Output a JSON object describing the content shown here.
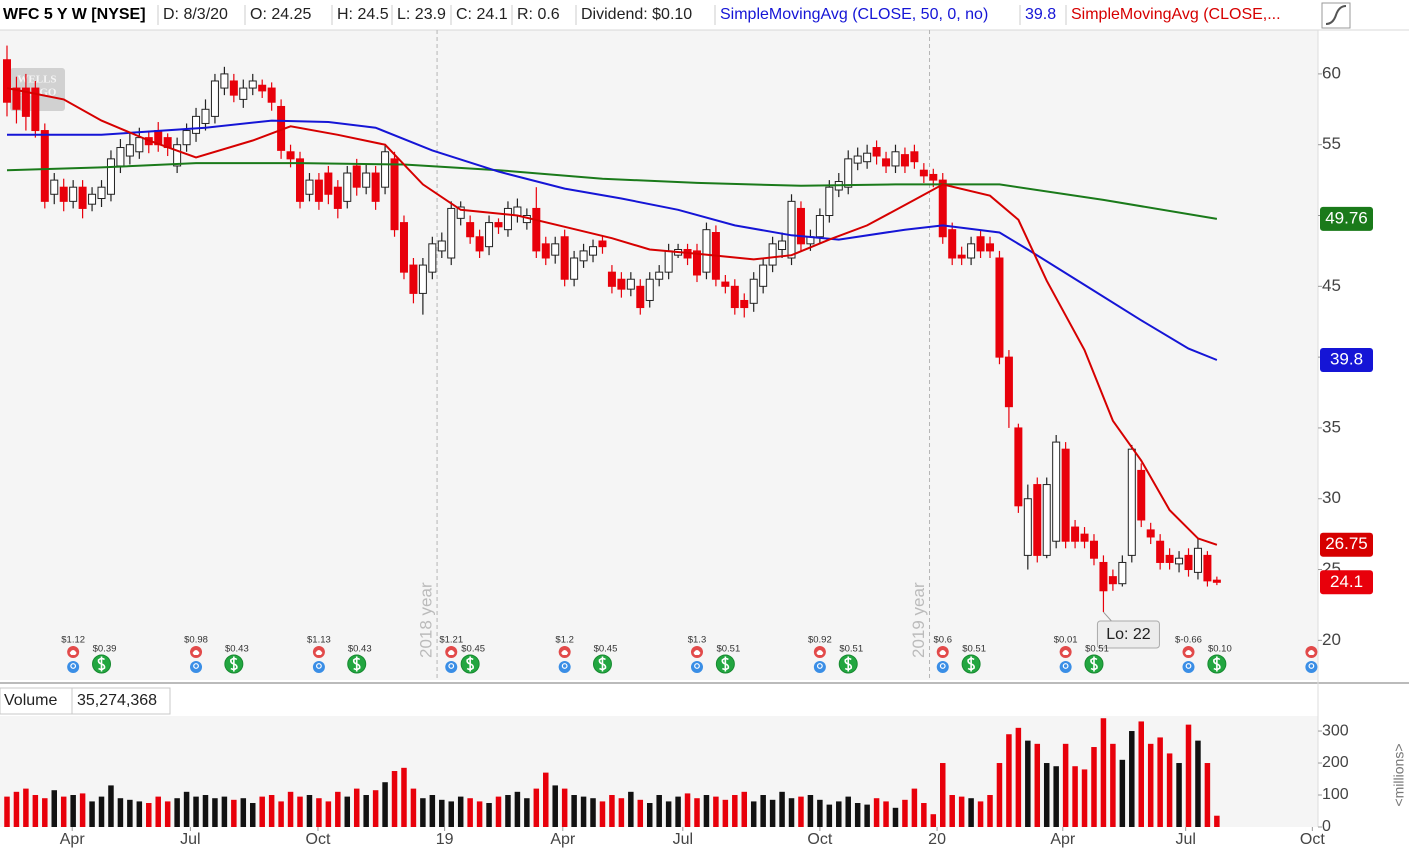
{
  "header": [
    {
      "text": "WFC 5 Y W [NYSE]",
      "color": "#000000",
      "bold": true
    },
    {
      "text": "D: 8/3/20",
      "color": "#222222"
    },
    {
      "text": "O: 24.25",
      "color": "#222222"
    },
    {
      "text": "H: 24.5",
      "color": "#222222"
    },
    {
      "text": "L: 23.9",
      "color": "#222222"
    },
    {
      "text": "C: 24.1",
      "color": "#222222"
    },
    {
      "text": "R: 0.6",
      "color": "#222222"
    },
    {
      "text": "Dividend: $0.10",
      "color": "#222222"
    },
    {
      "text": "SimpleMovingAvg (CLOSE, 50, 0, no)",
      "color": "#1515d6"
    },
    {
      "text": "39.8",
      "color": "#1515d6"
    },
    {
      "text": "SimpleMovingAvg (CLOSE,...",
      "color": "#d60000"
    }
  ],
  "chart_data": [
    {
      "type": "candlestick",
      "logo": [
        "WELLS",
        "FARGO"
      ],
      "up_color": "#ffffff",
      "up_stroke": "#222222",
      "down_color": "#e8000b",
      "xlim": [
        -0.74,
        138.7
      ],
      "ylim": [
        17.2,
        63.1
      ],
      "yticks": [
        20,
        25,
        30,
        35,
        40,
        45,
        50,
        55,
        60
      ],
      "grid": false,
      "open": [
        61,
        59,
        59,
        59,
        56,
        51.5,
        52,
        51,
        52,
        50.8,
        51.2,
        51.5,
        53.5,
        54.2,
        54.5,
        55.5,
        56,
        55.5,
        53.5,
        55,
        55.8,
        56.5,
        57,
        59,
        59.5,
        58.2,
        59,
        59.2,
        59,
        57.7,
        54.5,
        54,
        51.5,
        52.5,
        53,
        52,
        51,
        53.5,
        52,
        53,
        52,
        54,
        49.5,
        46.5,
        44.5,
        46,
        47.5,
        47,
        49.8,
        49.5,
        48.5,
        47.8,
        49.5,
        49,
        50,
        49.5,
        50.5,
        48,
        47.2,
        48.5,
        45.5,
        46.8,
        47.2,
        48.2,
        46,
        45.5,
        44.8,
        45,
        44,
        45.5,
        46,
        47.2,
        47.6,
        47.5,
        46,
        48.8,
        45.3,
        45,
        44,
        43.8,
        45,
        46.5,
        47.6,
        47,
        50.5,
        48,
        48.5,
        50,
        51.8,
        52,
        53.7,
        53.8,
        54.8,
        54,
        53.5,
        54.3,
        54.5,
        53.2,
        52.9,
        52.5,
        49,
        47.2,
        47,
        48.5,
        48,
        47,
        40,
        35,
        26,
        31,
        26,
        27,
        33.5,
        28,
        27.5,
        27,
        25.5,
        24.5,
        24,
        26,
        32,
        27.8,
        27,
        26,
        25.4,
        26,
        24.8,
        26,
        24.25
      ],
      "high": [
        62,
        59.8,
        60,
        59.5,
        56.5,
        53,
        52.6,
        52.5,
        52.5,
        52,
        52.5,
        54.6,
        55.4,
        55.8,
        56.2,
        56,
        56.6,
        55.8,
        55.5,
        56.5,
        57.6,
        58.2,
        60,
        60.5,
        60,
        59.6,
        60,
        59.6,
        59.4,
        58.2,
        55,
        54.5,
        53,
        53,
        53.5,
        52.5,
        53.5,
        54,
        53.6,
        53.5,
        55,
        54.5,
        50,
        47,
        47,
        48.5,
        48.8,
        51,
        51,
        50,
        49,
        50,
        49.8,
        51,
        51.2,
        50.5,
        52,
        48.5,
        48.5,
        49,
        47.5,
        48,
        48.3,
        48.6,
        46.5,
        46,
        46,
        45.5,
        46,
        46.5,
        48,
        48,
        48,
        48,
        49.5,
        49.3,
        45.8,
        45.5,
        44.5,
        46,
        47,
        48.5,
        48.8,
        51.5,
        51,
        49,
        50.5,
        52.5,
        53,
        54.6,
        54.8,
        55,
        55.3,
        54.5,
        55,
        54.8,
        55,
        53.7,
        53.3,
        53,
        49.5,
        47.8,
        48.5,
        49,
        48.5,
        47.5,
        40.5,
        35.3,
        31,
        31.5,
        31.5,
        34.5,
        34,
        28.5,
        28,
        27.5,
        26,
        25,
        26,
        33.8,
        32.5,
        28.3,
        27.5,
        26.5,
        26.3,
        26.5,
        27.2,
        26.3,
        24.5
      ],
      "low": [
        57,
        56.5,
        56,
        55.5,
        50.5,
        50.8,
        50.3,
        50.5,
        49.8,
        50.3,
        50.6,
        51,
        53,
        53.6,
        54,
        54.4,
        54.5,
        54.2,
        53,
        54.5,
        55.2,
        56,
        56.5,
        58.5,
        58,
        57.6,
        58.5,
        58.3,
        57.4,
        54,
        53.4,
        50.5,
        51,
        50.4,
        50.8,
        49.8,
        50.5,
        51.4,
        51.5,
        50.4,
        51.5,
        48.5,
        45.5,
        43.8,
        43,
        45.5,
        47,
        46.5,
        49.3,
        48,
        47,
        47.2,
        48.7,
        48.5,
        49.5,
        49,
        47,
        46.5,
        46.6,
        45,
        45,
        46.3,
        46.7,
        47.3,
        44.5,
        44.2,
        44.3,
        43,
        43.5,
        45,
        45.5,
        47,
        46.5,
        45.3,
        45.5,
        45,
        44.5,
        43,
        42.8,
        43.2,
        44.5,
        46,
        47,
        46.5,
        47.5,
        47.5,
        48,
        49.5,
        51.3,
        51.5,
        53.2,
        53.3,
        53.6,
        53,
        53,
        53,
        53.3,
        52.3,
        52,
        48,
        46.5,
        46.5,
        46.5,
        47,
        47,
        39.5,
        35,
        29,
        25,
        25.5,
        25.8,
        26.5,
        26.5,
        26.5,
        26.5,
        25.3,
        22,
        23.5,
        23.8,
        25.5,
        28,
        26.8,
        25,
        25,
        24.8,
        24.5,
        24.3,
        23.8,
        23.9
      ],
      "close": [
        58,
        57.5,
        57,
        56,
        51,
        52.5,
        51,
        52,
        50.5,
        51.5,
        52,
        54,
        54.8,
        55,
        55.5,
        55,
        55,
        54.8,
        55,
        56,
        57,
        57.5,
        59.5,
        60,
        58.5,
        59,
        59.5,
        58.8,
        58,
        54.6,
        54,
        51,
        52.5,
        51,
        51.5,
        50.5,
        53,
        52,
        53,
        51,
        54.5,
        49,
        46,
        44.5,
        46.5,
        48,
        48.2,
        50.5,
        50.6,
        48.5,
        47.5,
        49.5,
        49.2,
        50.5,
        50.6,
        50,
        47.5,
        47,
        48,
        45.5,
        47,
        47.5,
        47.8,
        47.8,
        45,
        44.8,
        45.5,
        43.5,
        45.5,
        46,
        47.5,
        47.6,
        47,
        45.8,
        49,
        45.5,
        45,
        43.5,
        43.5,
        45.5,
        46.5,
        48,
        48.2,
        51,
        48,
        48.5,
        50,
        52,
        52.4,
        54,
        54.2,
        54.4,
        54.2,
        53.5,
        54.5,
        53.5,
        53.8,
        52.8,
        52.5,
        48.5,
        47,
        47,
        48,
        47.5,
        47.5,
        40,
        36.5,
        29.5,
        30,
        26,
        31,
        34,
        27,
        27,
        27,
        25.8,
        23.5,
        24,
        25.5,
        33.5,
        28.5,
        27.3,
        25.5,
        25.5,
        25.8,
        25,
        26.5,
        24.2,
        24.1
      ],
      "series": [
        {
          "color": "#1a7a1a",
          "x": [
            0,
            10,
            20,
            31,
            42,
            52,
            63,
            73,
            84,
            94,
            105,
            116,
            128
          ],
          "values": [
            53.2,
            53.4,
            53.7,
            53.7,
            53.6,
            53.2,
            52.6,
            52.3,
            52.1,
            52.2,
            52.2,
            51.1,
            49.76
          ]
        },
        {
          "color": "#1515d6",
          "x": [
            0,
            10,
            21,
            28,
            34,
            39,
            45,
            52,
            59,
            65,
            71,
            77,
            83,
            88,
            95,
            99,
            105,
            108,
            114,
            120,
            125,
            128
          ],
          "values": [
            55.7,
            55.7,
            56.2,
            56.7,
            56.6,
            56.2,
            54.6,
            53.1,
            51.9,
            51.2,
            50.4,
            49.3,
            48.6,
            48.3,
            49,
            49.3,
            48.8,
            47.6,
            45.1,
            42.6,
            40.6,
            39.8
          ]
        },
        {
          "color": "#d60000",
          "x": [
            0,
            6,
            10,
            15,
            20,
            26,
            30,
            35,
            40,
            44,
            48,
            54,
            59,
            64,
            68,
            73,
            79,
            83,
            87,
            91,
            96,
            99,
            104,
            107,
            110,
            114,
            117,
            120,
            123,
            126,
            128
          ],
          "values": [
            59,
            58.2,
            56.7,
            55.3,
            54.1,
            55.3,
            56.3,
            55.7,
            55,
            52.2,
            50.4,
            50,
            49.2,
            48.4,
            47.6,
            47.3,
            46.9,
            47.2,
            48.3,
            49.3,
            51.1,
            52.2,
            51.4,
            49.7,
            45.4,
            40.5,
            35.5,
            32.7,
            29.2,
            27.2,
            26.75
          ]
        }
      ],
      "year_markers": [
        {
          "x": 45.5,
          "label": "2018 year"
        },
        {
          "x": 97.6,
          "label": "2019 year"
        }
      ],
      "earnings": [
        {
          "x": 7,
          "label": "$1.12"
        },
        {
          "x": 20,
          "label": "$0.98"
        },
        {
          "x": 33,
          "label": "$1.13"
        },
        {
          "x": 47,
          "label": "$1.21"
        },
        {
          "x": 59,
          "label": "$1.2"
        },
        {
          "x": 73,
          "label": "$1.3"
        },
        {
          "x": 86,
          "label": "$0.92"
        },
        {
          "x": 99,
          "label": "$0.6"
        },
        {
          "x": 112,
          "label": "$0.01"
        },
        {
          "x": 125,
          "label": "$-0.66"
        },
        {
          "x": 138
        }
      ],
      "dividends": [
        {
          "x": 10,
          "label": "$0.39"
        },
        {
          "x": 24,
          "label": "$0.43"
        },
        {
          "x": 37,
          "label": "$0.43"
        },
        {
          "x": 49,
          "label": "$0.45"
        },
        {
          "x": 63,
          "label": "$0.45"
        },
        {
          "x": 76,
          "label": "$0.51"
        },
        {
          "x": 89,
          "label": "$0.51"
        },
        {
          "x": 102,
          "label": "$0.51"
        },
        {
          "x": 115,
          "label": "$0.51"
        },
        {
          "x": 128,
          "label": "$0.10"
        }
      ],
      "low_annotation": "Lo: 22"
    },
    {
      "type": "bar",
      "title": "Volume",
      "value_label": "35,274,368",
      "unit_label": "<millions>",
      "up_color": "#111111",
      "down_color": "#e8000b",
      "xlim": [
        -0.74,
        138.7
      ],
      "xticks": [
        {
          "value": 6.9,
          "label": "Apr"
        },
        {
          "value": 19.4,
          "label": "Jul"
        },
        {
          "value": 32.9,
          "label": "Oct"
        },
        {
          "value": 46.3,
          "label": "19"
        },
        {
          "value": 58.8,
          "label": "Apr"
        },
        {
          "value": 71.5,
          "label": "Jul"
        },
        {
          "value": 86,
          "label": "Oct"
        },
        {
          "value": 98.4,
          "label": "20"
        },
        {
          "value": 111.7,
          "label": "Apr"
        },
        {
          "value": 124.7,
          "label": "Jul"
        },
        {
          "value": 138.1,
          "label": "Oct"
        }
      ],
      "ylim": [
        0,
        347
      ],
      "yticks": [
        0,
        100,
        200,
        300
      ],
      "values": [
        95,
        110,
        120,
        100,
        90,
        115,
        95,
        100,
        105,
        80,
        95,
        130,
        90,
        85,
        80,
        75,
        95,
        80,
        90,
        110,
        95,
        100,
        90,
        95,
        85,
        90,
        75,
        95,
        100,
        80,
        110,
        95,
        100,
        90,
        80,
        110,
        95,
        120,
        100,
        115,
        140,
        175,
        185,
        120,
        90,
        100,
        85,
        80,
        95,
        90,
        80,
        75,
        95,
        100,
        110,
        90,
        120,
        170,
        130,
        120,
        100,
        95,
        90,
        80,
        100,
        90,
        110,
        85,
        75,
        100,
        80,
        95,
        105,
        90,
        100,
        95,
        85,
        100,
        110,
        80,
        100,
        85,
        110,
        90,
        95,
        100,
        85,
        70,
        80,
        95,
        75,
        70,
        90,
        80,
        60,
        85,
        120,
        75,
        40,
        200,
        100,
        95,
        90,
        80,
        100,
        200,
        290,
        310,
        270,
        260,
        200,
        190,
        260,
        190,
        180,
        250,
        340,
        260,
        210,
        300,
        330,
        260,
        280,
        230,
        200,
        320,
        270,
        200,
        35.27
      ]
    }
  ]
}
